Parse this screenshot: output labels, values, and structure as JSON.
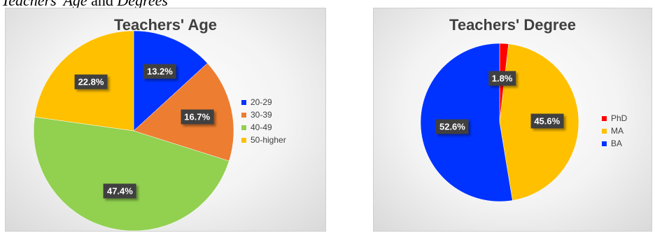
{
  "caption": {
    "part1": "Teachers' Age",
    "part2": " and ",
    "part3": "Degrees"
  },
  "chart_data": [
    {
      "type": "pie",
      "title": "Teachers' Age",
      "categories": [
        "20-29",
        "30-39",
        "40-49",
        "50-higher"
      ],
      "values": [
        13.2,
        16.7,
        47.4,
        22.8
      ],
      "labels": [
        "13.2%",
        "16.7%",
        "47.4%",
        "22.8%"
      ],
      "colors": [
        "#0033ff",
        "#ed7d31",
        "#92d050",
        "#ffc000"
      ],
      "legend_position": "right"
    },
    {
      "type": "pie",
      "title": "Teachers' Degree",
      "categories": [
        "PhD",
        "MA",
        "BA"
      ],
      "values": [
        1.8,
        45.6,
        52.6
      ],
      "labels": [
        "1.8%",
        "45.6%",
        "52.6%"
      ],
      "colors": [
        "#ff0000",
        "#ffc000",
        "#0033ff"
      ],
      "legend_position": "right"
    }
  ]
}
